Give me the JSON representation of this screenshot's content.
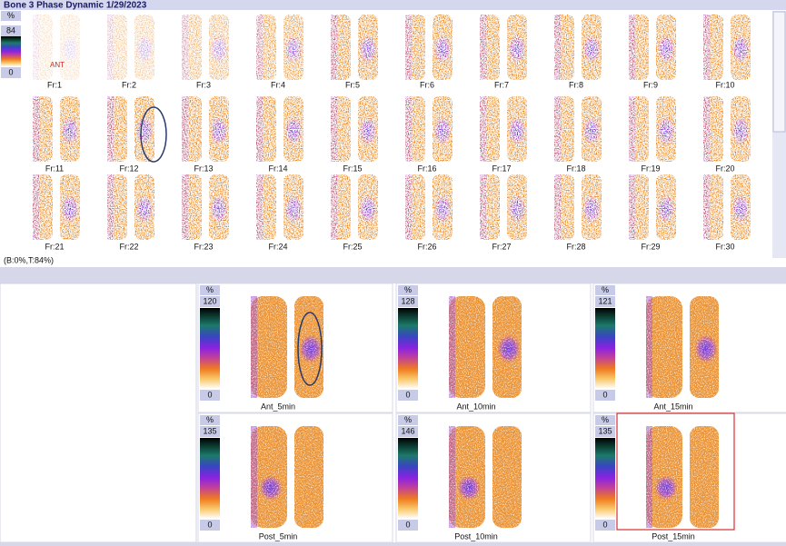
{
  "header": {
    "title": "Bone 3 Phase Dynamic 1/29/2023"
  },
  "dynamic": {
    "scale": {
      "unit": "%",
      "max": 84,
      "min": 0
    },
    "view": "ANT",
    "frames": [
      "Fr:1",
      "Fr:2",
      "Fr:3",
      "Fr:4",
      "Fr:5",
      "Fr:6",
      "Fr:7",
      "Fr:8",
      "Fr:9",
      "Fr:10",
      "Fr:11",
      "Fr:12",
      "Fr:13",
      "Fr:14",
      "Fr:15",
      "Fr:16",
      "Fr:17",
      "Fr:18",
      "Fr:19",
      "Fr:20",
      "Fr:21",
      "Fr:22",
      "Fr:23",
      "Fr:24",
      "Fr:25",
      "Fr:26",
      "Fr:27",
      "Fr:28",
      "Fr:29",
      "Fr:30"
    ],
    "status": "(B:0%,T:84%)"
  },
  "static": [
    {
      "unit": "%",
      "max": 120,
      "min": 0,
      "label": "Ant_5min"
    },
    {
      "unit": "%",
      "max": 128,
      "min": 0,
      "label": "Ant_10min"
    },
    {
      "unit": "%",
      "max": 121,
      "min": 0,
      "label": "Ant_15min"
    },
    {
      "unit": "%",
      "max": 135,
      "min": 0,
      "label": "Post_5min"
    },
    {
      "unit": "%",
      "max": 146,
      "min": 0,
      "label": "Post_10min"
    },
    {
      "unit": "%",
      "max": 135,
      "min": 0,
      "label": "Post_15min"
    }
  ]
}
